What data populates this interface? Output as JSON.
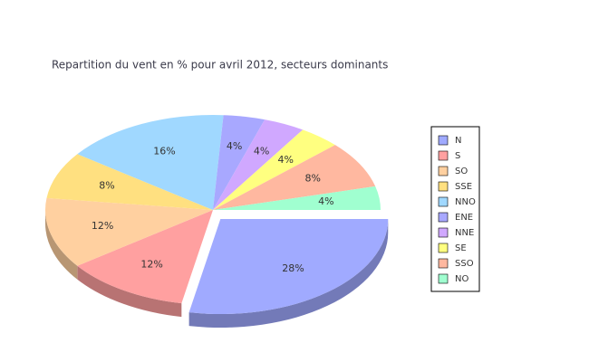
{
  "chart_data": {
    "type": "pie",
    "title": "Repartition du vent en % pour avril 2012, secteurs dominants",
    "categories": [
      "N",
      "S",
      "SO",
      "SSE",
      "NNO",
      "ENE",
      "NNE",
      "SE",
      "SSO",
      "NO"
    ],
    "values": [
      28,
      12,
      12,
      8,
      16,
      4,
      4,
      4,
      8,
      4
    ],
    "value_labels": [
      "28%",
      "12%",
      "12%",
      "8%",
      "16%",
      "4%",
      "4%",
      "4%",
      "8%",
      "4%"
    ],
    "colors": [
      "#a0aaff",
      "#ffa0a0",
      "#ffd0a0",
      "#ffe080",
      "#a0d8ff",
      "#a8a8ff",
      "#d0a8ff",
      "#ffff80",
      "#ffb8a0",
      "#a0ffd0"
    ],
    "exploded": "N"
  }
}
